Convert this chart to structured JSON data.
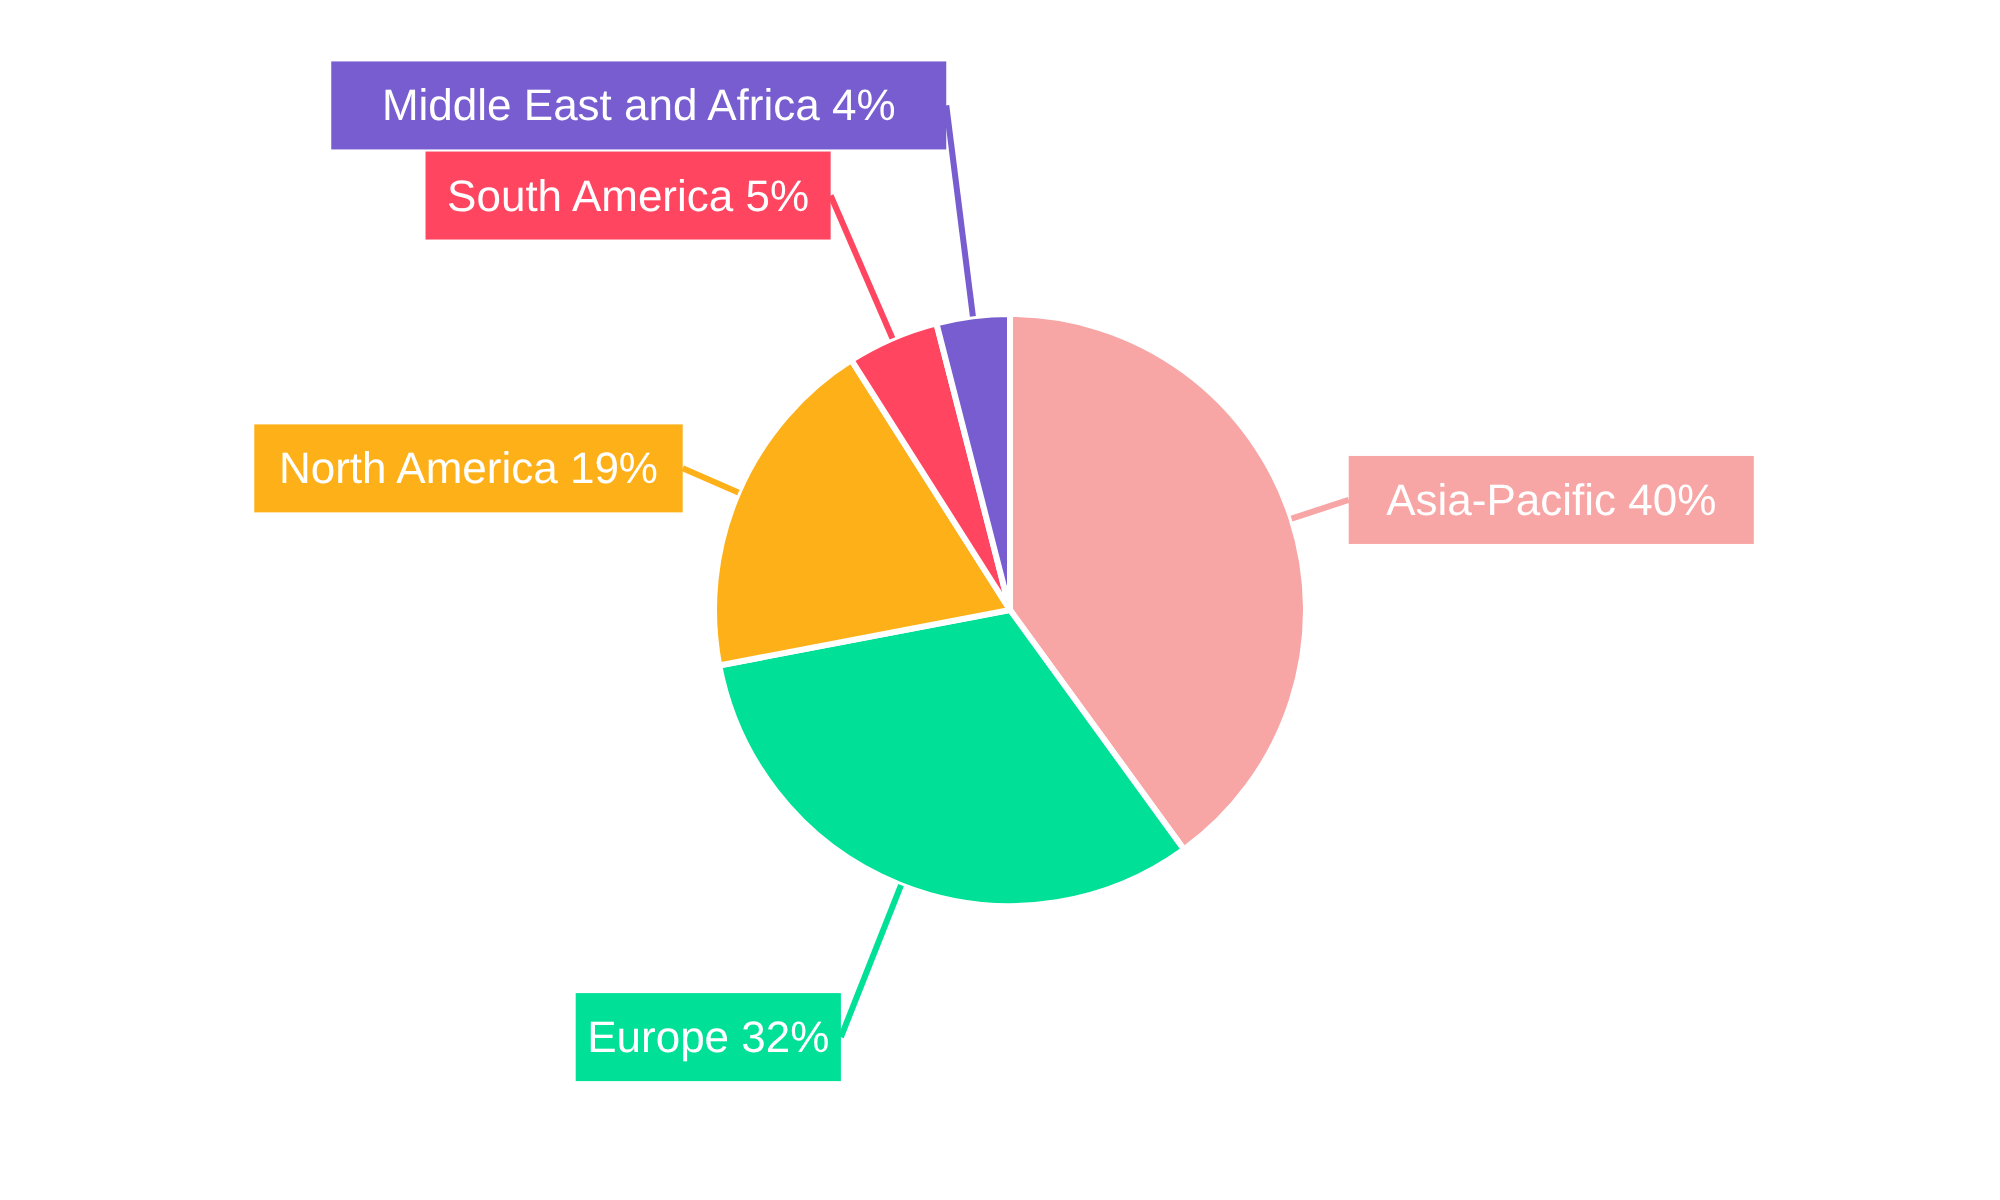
{
  "chart_data": {
    "type": "pie",
    "categories": [
      "Asia-Pacific",
      "Europe",
      "North America",
      "South America",
      "Middle East and Africa"
    ],
    "values": [
      40,
      32,
      19,
      5,
      4
    ],
    "colors": [
      "#f8a5a5",
      "#00e096",
      "#feb019",
      "#ff4560",
      "#775dd0"
    ],
    "value_labels": [
      "40%",
      "32%",
      "19%",
      "5%",
      "4%"
    ]
  }
}
